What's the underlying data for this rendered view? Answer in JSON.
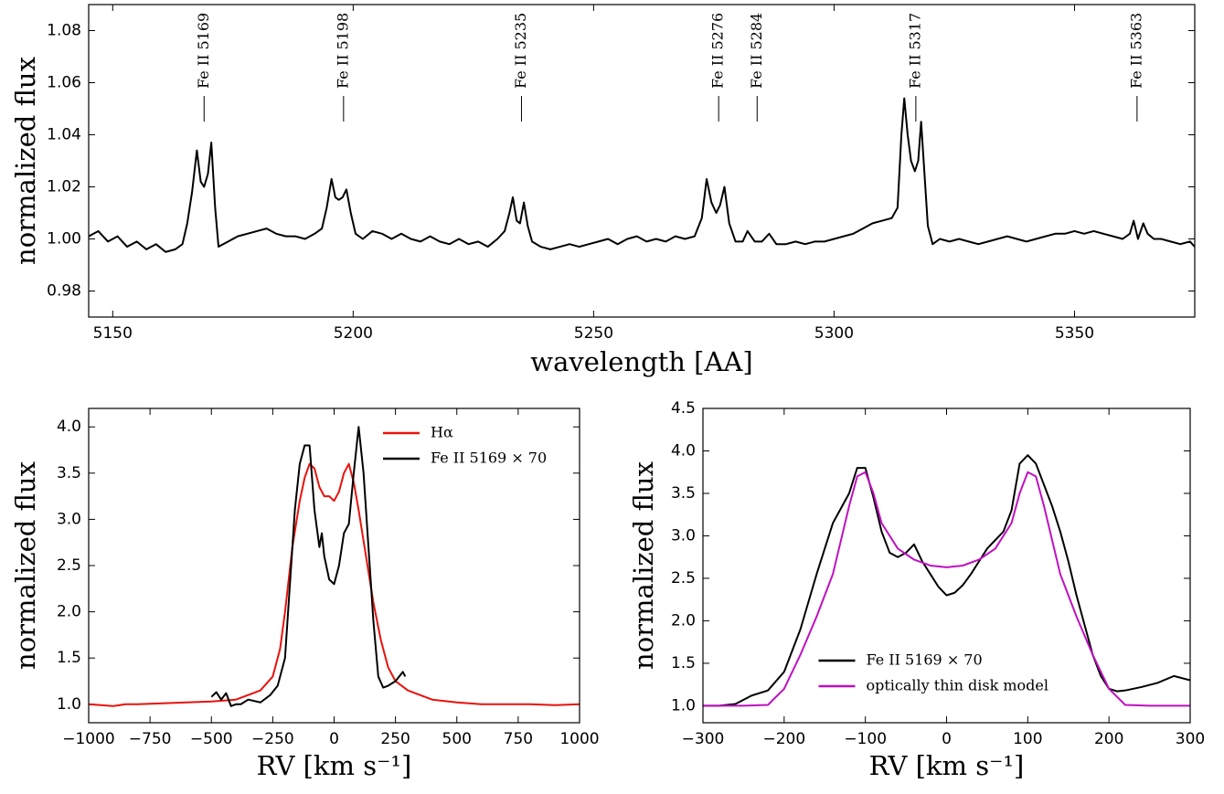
{
  "chart_data": [
    {
      "type": "line",
      "xlabel": "wavelength [AA]",
      "ylabel": "normalized flux",
      "xlim": [
        5145,
        5375
      ],
      "ylim": [
        0.97,
        1.09
      ],
      "xticks": [
        5150,
        5200,
        5250,
        5300,
        5350
      ],
      "yticks": [
        0.98,
        {
          "value": 1.0,
          "label": "1.00"
        },
        1.02,
        1.04,
        1.06,
        1.08
      ],
      "annotations": [
        {
          "text": "Fe II 5169",
          "x": 5169
        },
        {
          "text": "Fe II 5198",
          "x": 5198
        },
        {
          "text": "Fe II 5235",
          "x": 5235
        },
        {
          "text": "Fe II 5276",
          "x": 5276
        },
        {
          "text": "Fe II 5284",
          "x": 5284
        },
        {
          "text": "Fe II 5317",
          "x": 5317
        },
        {
          "text": "Fe II 5363",
          "x": 5363
        }
      ],
      "series": [
        {
          "color": "#000000",
          "x": [
            5145,
            5147,
            5149,
            5151,
            5153,
            5155,
            5157,
            5159,
            5161,
            5163,
            5164.5,
            5165.5,
            5166.5,
            5167.5,
            5168.3,
            5169,
            5169.8,
            5170.5,
            5171.3,
            5172,
            5174,
            5176,
            5178,
            5180,
            5182,
            5184,
            5186,
            5188,
            5190,
            5192,
            5193.5,
            5194.5,
            5195.5,
            5196.3,
            5197,
            5197.8,
            5198.6,
            5199.5,
            5200.5,
            5202,
            5204,
            5206,
            5208,
            5210,
            5212,
            5214,
            5216,
            5218,
            5220,
            5222,
            5224,
            5226,
            5228,
            5230,
            5231.5,
            5232.5,
            5233.2,
            5234,
            5234.7,
            5235.5,
            5236.3,
            5237.2,
            5239,
            5241,
            5243,
            5245,
            5247,
            5249,
            5251,
            5253,
            5255,
            5257,
            5259,
            5261,
            5263,
            5265,
            5267,
            5269,
            5271,
            5272.5,
            5273.5,
            5274.5,
            5275.5,
            5276.3,
            5277.2,
            5278.2,
            5279.5,
            5281,
            5282,
            5283.5,
            5285,
            5286.5,
            5288,
            5290,
            5292,
            5294,
            5296,
            5298,
            5300,
            5302,
            5304,
            5306,
            5308,
            5310,
            5312,
            5313.2,
            5314,
            5314.6,
            5315.3,
            5316,
            5316.8,
            5317.5,
            5318.1,
            5318.8,
            5319.5,
            5320.5,
            5322,
            5324,
            5326,
            5328,
            5330,
            5332,
            5334,
            5336,
            5338,
            5340,
            5342,
            5344,
            5346,
            5348,
            5350,
            5352,
            5354,
            5356,
            5358,
            5360,
            5361.5,
            5362.3,
            5363.2,
            5364.3,
            5365.2,
            5366.5,
            5368,
            5370,
            5372,
            5374,
            5375
          ],
          "values": [
            1.001,
            1.003,
            0.999,
            1.001,
            0.997,
            0.999,
            0.996,
            0.998,
            0.995,
            0.996,
            0.998,
            1.006,
            1.018,
            1.034,
            1.022,
            1.02,
            1.025,
            1.037,
            1.012,
            0.997,
            0.999,
            1.001,
            1.002,
            1.003,
            1.004,
            1.002,
            1.001,
            1.001,
            1.0,
            1.002,
            1.004,
            1.012,
            1.023,
            1.016,
            1.015,
            1.016,
            1.019,
            1.01,
            1.002,
            1.0,
            1.003,
            1.002,
            1.0,
            1.002,
            1.0,
            0.999,
            1.001,
            0.999,
            0.998,
            1.0,
            0.998,
            0.999,
            0.997,
            1.0,
            1.003,
            1.01,
            1.016,
            1.007,
            1.006,
            1.014,
            1.005,
            0.999,
            0.997,
            0.996,
            0.997,
            0.998,
            0.997,
            0.998,
            0.999,
            1.0,
            0.998,
            1.0,
            1.001,
            0.999,
            1.0,
            0.999,
            1.001,
            1.0,
            1.001,
            1.008,
            1.023,
            1.014,
            1.01,
            1.013,
            1.02,
            1.006,
            0.999,
            0.999,
            1.003,
            0.999,
            0.999,
            1.002,
            0.998,
            0.998,
            0.999,
            0.998,
            0.999,
            0.999,
            1.0,
            1.001,
            1.002,
            1.004,
            1.006,
            1.007,
            1.008,
            1.012,
            1.04,
            1.054,
            1.04,
            1.03,
            1.026,
            1.03,
            1.045,
            1.025,
            1.005,
            0.998,
            1.0,
            0.999,
            1.0,
            0.999,
            0.998,
            0.999,
            1.0,
            1.001,
            1.0,
            0.999,
            1.0,
            1.001,
            1.002,
            1.002,
            1.003,
            1.002,
            1.003,
            1.002,
            1.001,
            1.0,
            1.002,
            1.007,
            1.0,
            1.006,
            1.002,
            1.0,
            1.0,
            0.999,
            0.998,
            0.999,
            0.997
          ]
        }
      ]
    },
    {
      "type": "line",
      "xlabel": "RV [km s⁻¹]",
      "ylabel": "normalized flux",
      "xlim": [
        -1000,
        1000
      ],
      "ylim": [
        0.8,
        4.2
      ],
      "xticks": [
        {
          "value": -1000,
          "label": "−1000"
        },
        {
          "value": -750,
          "label": "−750"
        },
        {
          "value": -500,
          "label": "−500"
        },
        {
          "value": -250,
          "label": "−250"
        },
        0,
        250,
        500,
        750,
        1000
      ],
      "yticks": [
        {
          "value": 1,
          "label": "1.0"
        },
        1.5,
        {
          "value": 2,
          "label": "2.0"
        },
        2.5,
        {
          "value": 3,
          "label": "3.0"
        },
        3.5,
        {
          "value": 4,
          "label": "4.0"
        }
      ],
      "legend": "upper right",
      "series": [
        {
          "name": "Hα",
          "color": "#e8120c",
          "x": [
            -1000,
            -950,
            -900,
            -850,
            -800,
            -700,
            -600,
            -500,
            -400,
            -350,
            -300,
            -250,
            -220,
            -200,
            -170,
            -140,
            -120,
            -100,
            -80,
            -60,
            -40,
            -20,
            0,
            20,
            40,
            60,
            80,
            100,
            130,
            160,
            190,
            220,
            250,
            300,
            350,
            400,
            500,
            600,
            700,
            800,
            900,
            1000
          ],
          "values": [
            1.0,
            0.99,
            0.98,
            1.0,
            1.0,
            1.01,
            1.02,
            1.03,
            1.05,
            1.1,
            1.15,
            1.3,
            1.6,
            2.0,
            2.7,
            3.2,
            3.45,
            3.6,
            3.55,
            3.35,
            3.25,
            3.25,
            3.2,
            3.3,
            3.5,
            3.6,
            3.4,
            3.1,
            2.6,
            2.1,
            1.7,
            1.4,
            1.25,
            1.15,
            1.1,
            1.05,
            1.02,
            1.0,
            1.0,
            1.0,
            0.99,
            1.0
          ]
        },
        {
          "name": "Fe II 5169 × 70",
          "color": "#000000",
          "x": [
            -500,
            -480,
            -460,
            -440,
            -420,
            -400,
            -380,
            -350,
            -300,
            -260,
            -230,
            -200,
            -180,
            -160,
            -140,
            -120,
            -100,
            -80,
            -60,
            -50,
            -40,
            -20,
            0,
            20,
            40,
            60,
            80,
            100,
            120,
            140,
            160,
            180,
            200,
            220,
            250,
            280,
            290
          ],
          "values": [
            1.08,
            1.13,
            1.05,
            1.12,
            0.98,
            1.0,
            1.0,
            1.05,
            1.02,
            1.1,
            1.2,
            1.5,
            2.3,
            3.1,
            3.6,
            3.8,
            3.8,
            3.1,
            2.7,
            2.85,
            2.6,
            2.35,
            2.3,
            2.5,
            2.85,
            2.95,
            3.5,
            4.0,
            3.5,
            2.7,
            1.9,
            1.3,
            1.18,
            1.2,
            1.25,
            1.35,
            1.3
          ]
        }
      ]
    },
    {
      "type": "line",
      "xlabel": "RV [km s⁻¹]",
      "ylabel": "normalized flux",
      "xlim": [
        -300,
        300
      ],
      "ylim": [
        0.8,
        4.5
      ],
      "xticks": [
        {
          "value": -300,
          "label": "−300"
        },
        {
          "value": -200,
          "label": "−200"
        },
        {
          "value": -100,
          "label": "−100"
        },
        0,
        100,
        200,
        300
      ],
      "yticks": [
        {
          "value": 1,
          "label": "1.0"
        },
        1.5,
        {
          "value": 2,
          "label": "2.0"
        },
        2.5,
        {
          "value": 3,
          "label": "3.0"
        },
        3.5,
        {
          "value": 4,
          "label": "4.0"
        },
        4.5
      ],
      "legend": "lower center",
      "series": [
        {
          "name": "Fe II 5169 × 70",
          "color": "#000000",
          "x": [
            -300,
            -280,
            -260,
            -240,
            -220,
            -200,
            -180,
            -160,
            -140,
            -120,
            -110,
            -100,
            -90,
            -80,
            -70,
            -60,
            -50,
            -40,
            -30,
            -20,
            -10,
            0,
            10,
            20,
            30,
            40,
            50,
            60,
            70,
            80,
            90,
            100,
            110,
            120,
            130,
            140,
            150,
            160,
            170,
            180,
            190,
            200,
            210,
            220,
            240,
            260,
            280,
            300
          ],
          "values": [
            1.0,
            1.0,
            1.02,
            1.12,
            1.18,
            1.4,
            1.9,
            2.55,
            3.15,
            3.5,
            3.8,
            3.8,
            3.45,
            3.05,
            2.8,
            2.75,
            2.8,
            2.9,
            2.7,
            2.55,
            2.4,
            2.3,
            2.33,
            2.42,
            2.55,
            2.7,
            2.85,
            2.95,
            3.05,
            3.3,
            3.85,
            3.95,
            3.85,
            3.6,
            3.35,
            3.05,
            2.7,
            2.3,
            1.95,
            1.6,
            1.35,
            1.2,
            1.17,
            1.18,
            1.22,
            1.27,
            1.35,
            1.3
          ]
        },
        {
          "name": "optically thin disk model",
          "color": "#c010c0",
          "x": [
            -300,
            -250,
            -220,
            -200,
            -180,
            -160,
            -140,
            -120,
            -110,
            -100,
            -90,
            -80,
            -60,
            -40,
            -20,
            0,
            20,
            40,
            60,
            80,
            90,
            100,
            110,
            120,
            140,
            160,
            180,
            200,
            220,
            250,
            300
          ],
          "values": [
            1.0,
            1.0,
            1.01,
            1.2,
            1.6,
            2.05,
            2.55,
            3.35,
            3.7,
            3.75,
            3.5,
            3.15,
            2.85,
            2.72,
            2.65,
            2.63,
            2.65,
            2.72,
            2.85,
            3.15,
            3.5,
            3.75,
            3.7,
            3.35,
            2.55,
            2.05,
            1.6,
            1.2,
            1.01,
            1.0,
            1.0
          ]
        }
      ]
    }
  ]
}
